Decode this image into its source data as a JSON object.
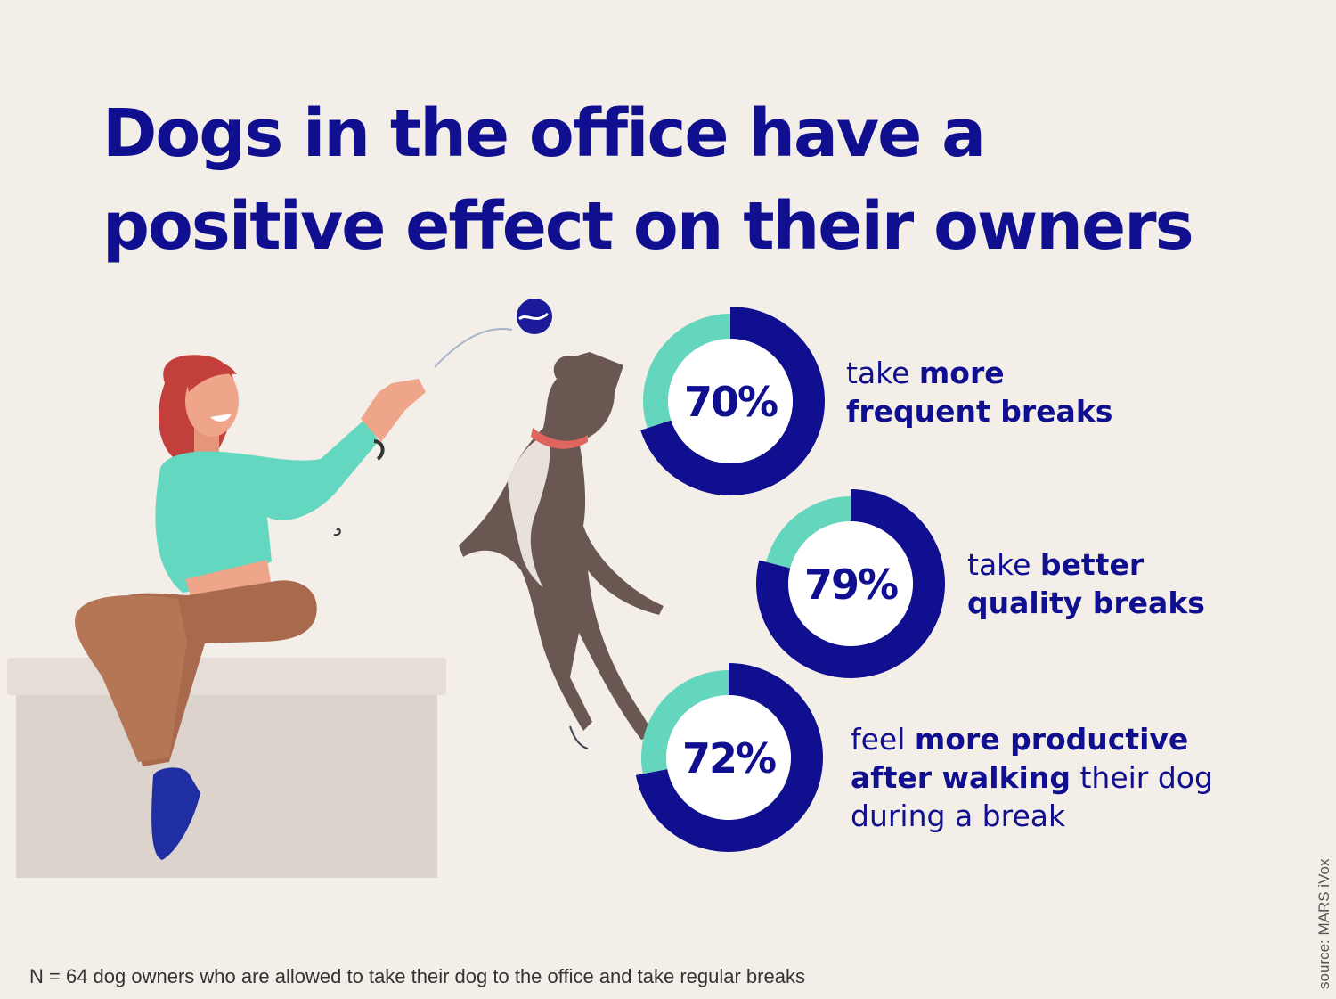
{
  "title": {
    "line1": "Dogs in the office have a",
    "line2": "positive effect on their owners"
  },
  "chart_data": {
    "type": "pie",
    "subtype": "donut",
    "colors": {
      "value": "#0f0f8f",
      "remainder": "#64d6bd",
      "center": "#ffffff"
    },
    "items": [
      {
        "value": 70,
        "display": "70%",
        "label_parts": [
          [
            "take ",
            false
          ],
          [
            "more",
            true
          ],
          [
            "\nfrequent breaks",
            true
          ]
        ]
      },
      {
        "value": 79,
        "display": "79%",
        "label_parts": [
          [
            "take ",
            false
          ],
          [
            "better",
            true
          ],
          [
            "\nquality breaks",
            true
          ]
        ]
      },
      {
        "value": 72,
        "display": "72%",
        "label_parts": [
          [
            "feel ",
            false
          ],
          [
            "more productive",
            true
          ],
          [
            "\nafter walking",
            true
          ],
          [
            " their dog",
            false
          ],
          [
            "\nduring a break",
            false
          ]
        ]
      }
    ]
  },
  "footnote": "N = 64 dog owners who are allowed to take their dog to the office and take regular breaks",
  "source": "source: MARS iVox",
  "icons": [
    "woman-illustration",
    "dog-illustration",
    "ball-icon",
    "box-seat"
  ]
}
